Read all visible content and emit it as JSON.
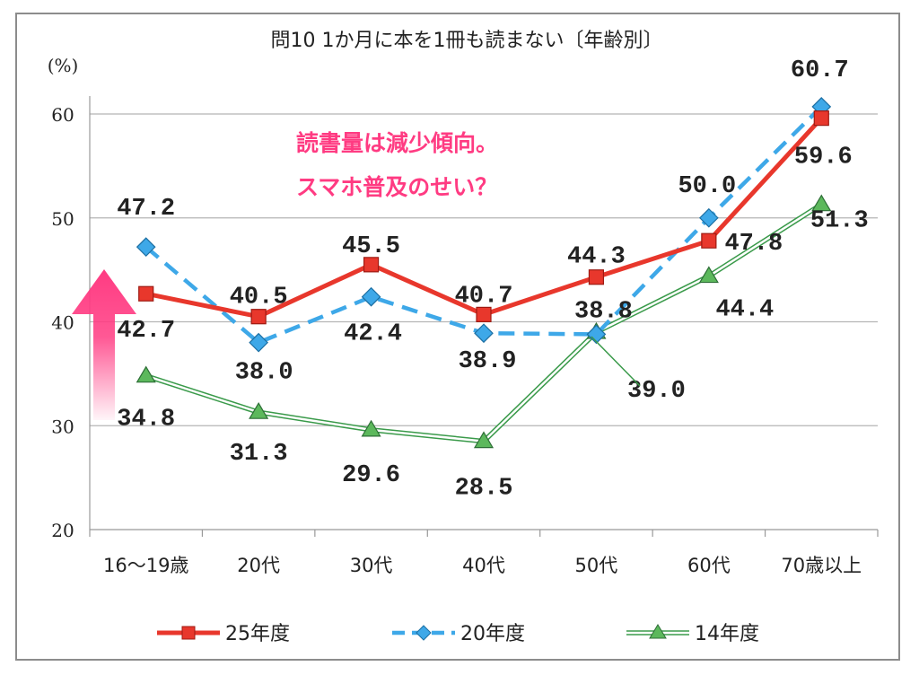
{
  "chart_data": {
    "type": "line",
    "title": "問10 1か月に本を1冊も読まない〔年齢別〕",
    "ylabel": "(%)",
    "ylim": [
      20,
      60
    ],
    "yticks": [
      20,
      30,
      40,
      50,
      60
    ],
    "grid": true,
    "legend_position": "bottom",
    "categories": [
      "16〜19歳",
      "20代",
      "30代",
      "40代",
      "50代",
      "60代",
      "70歳以上"
    ],
    "series": [
      {
        "name": "25年度",
        "values": [
          42.7,
          40.5,
          45.5,
          40.7,
          44.3,
          47.8,
          59.6
        ],
        "labels": [
          "42.7",
          "40.5",
          "45.5",
          "40.7",
          "44.3",
          "47.8",
          "59.6"
        ],
        "color": "#e8372c",
        "style": "solid",
        "marker": "square"
      },
      {
        "name": "20年度",
        "values": [
          47.2,
          38.0,
          42.4,
          38.9,
          38.8,
          50.0,
          60.7
        ],
        "labels": [
          "47.2",
          "38.0",
          "42.4",
          "38.9",
          "38.8",
          "50.0",
          "60.7"
        ],
        "color": "#3ea8e8",
        "style": "dashed",
        "marker": "diamond"
      },
      {
        "name": "14年度",
        "values": [
          34.8,
          31.3,
          29.6,
          28.5,
          39.0,
          44.4,
          51.3
        ],
        "labels": [
          "34.8",
          "31.3",
          "29.6",
          "28.5",
          "39.0",
          "44.4",
          "51.3"
        ],
        "color": "#3a9a4a",
        "style": "double",
        "marker": "triangle"
      }
    ],
    "annotations": [
      "読書量は減少傾向。",
      "スマホ普及のせい？"
    ],
    "arrow_color": "#ff3b82"
  }
}
